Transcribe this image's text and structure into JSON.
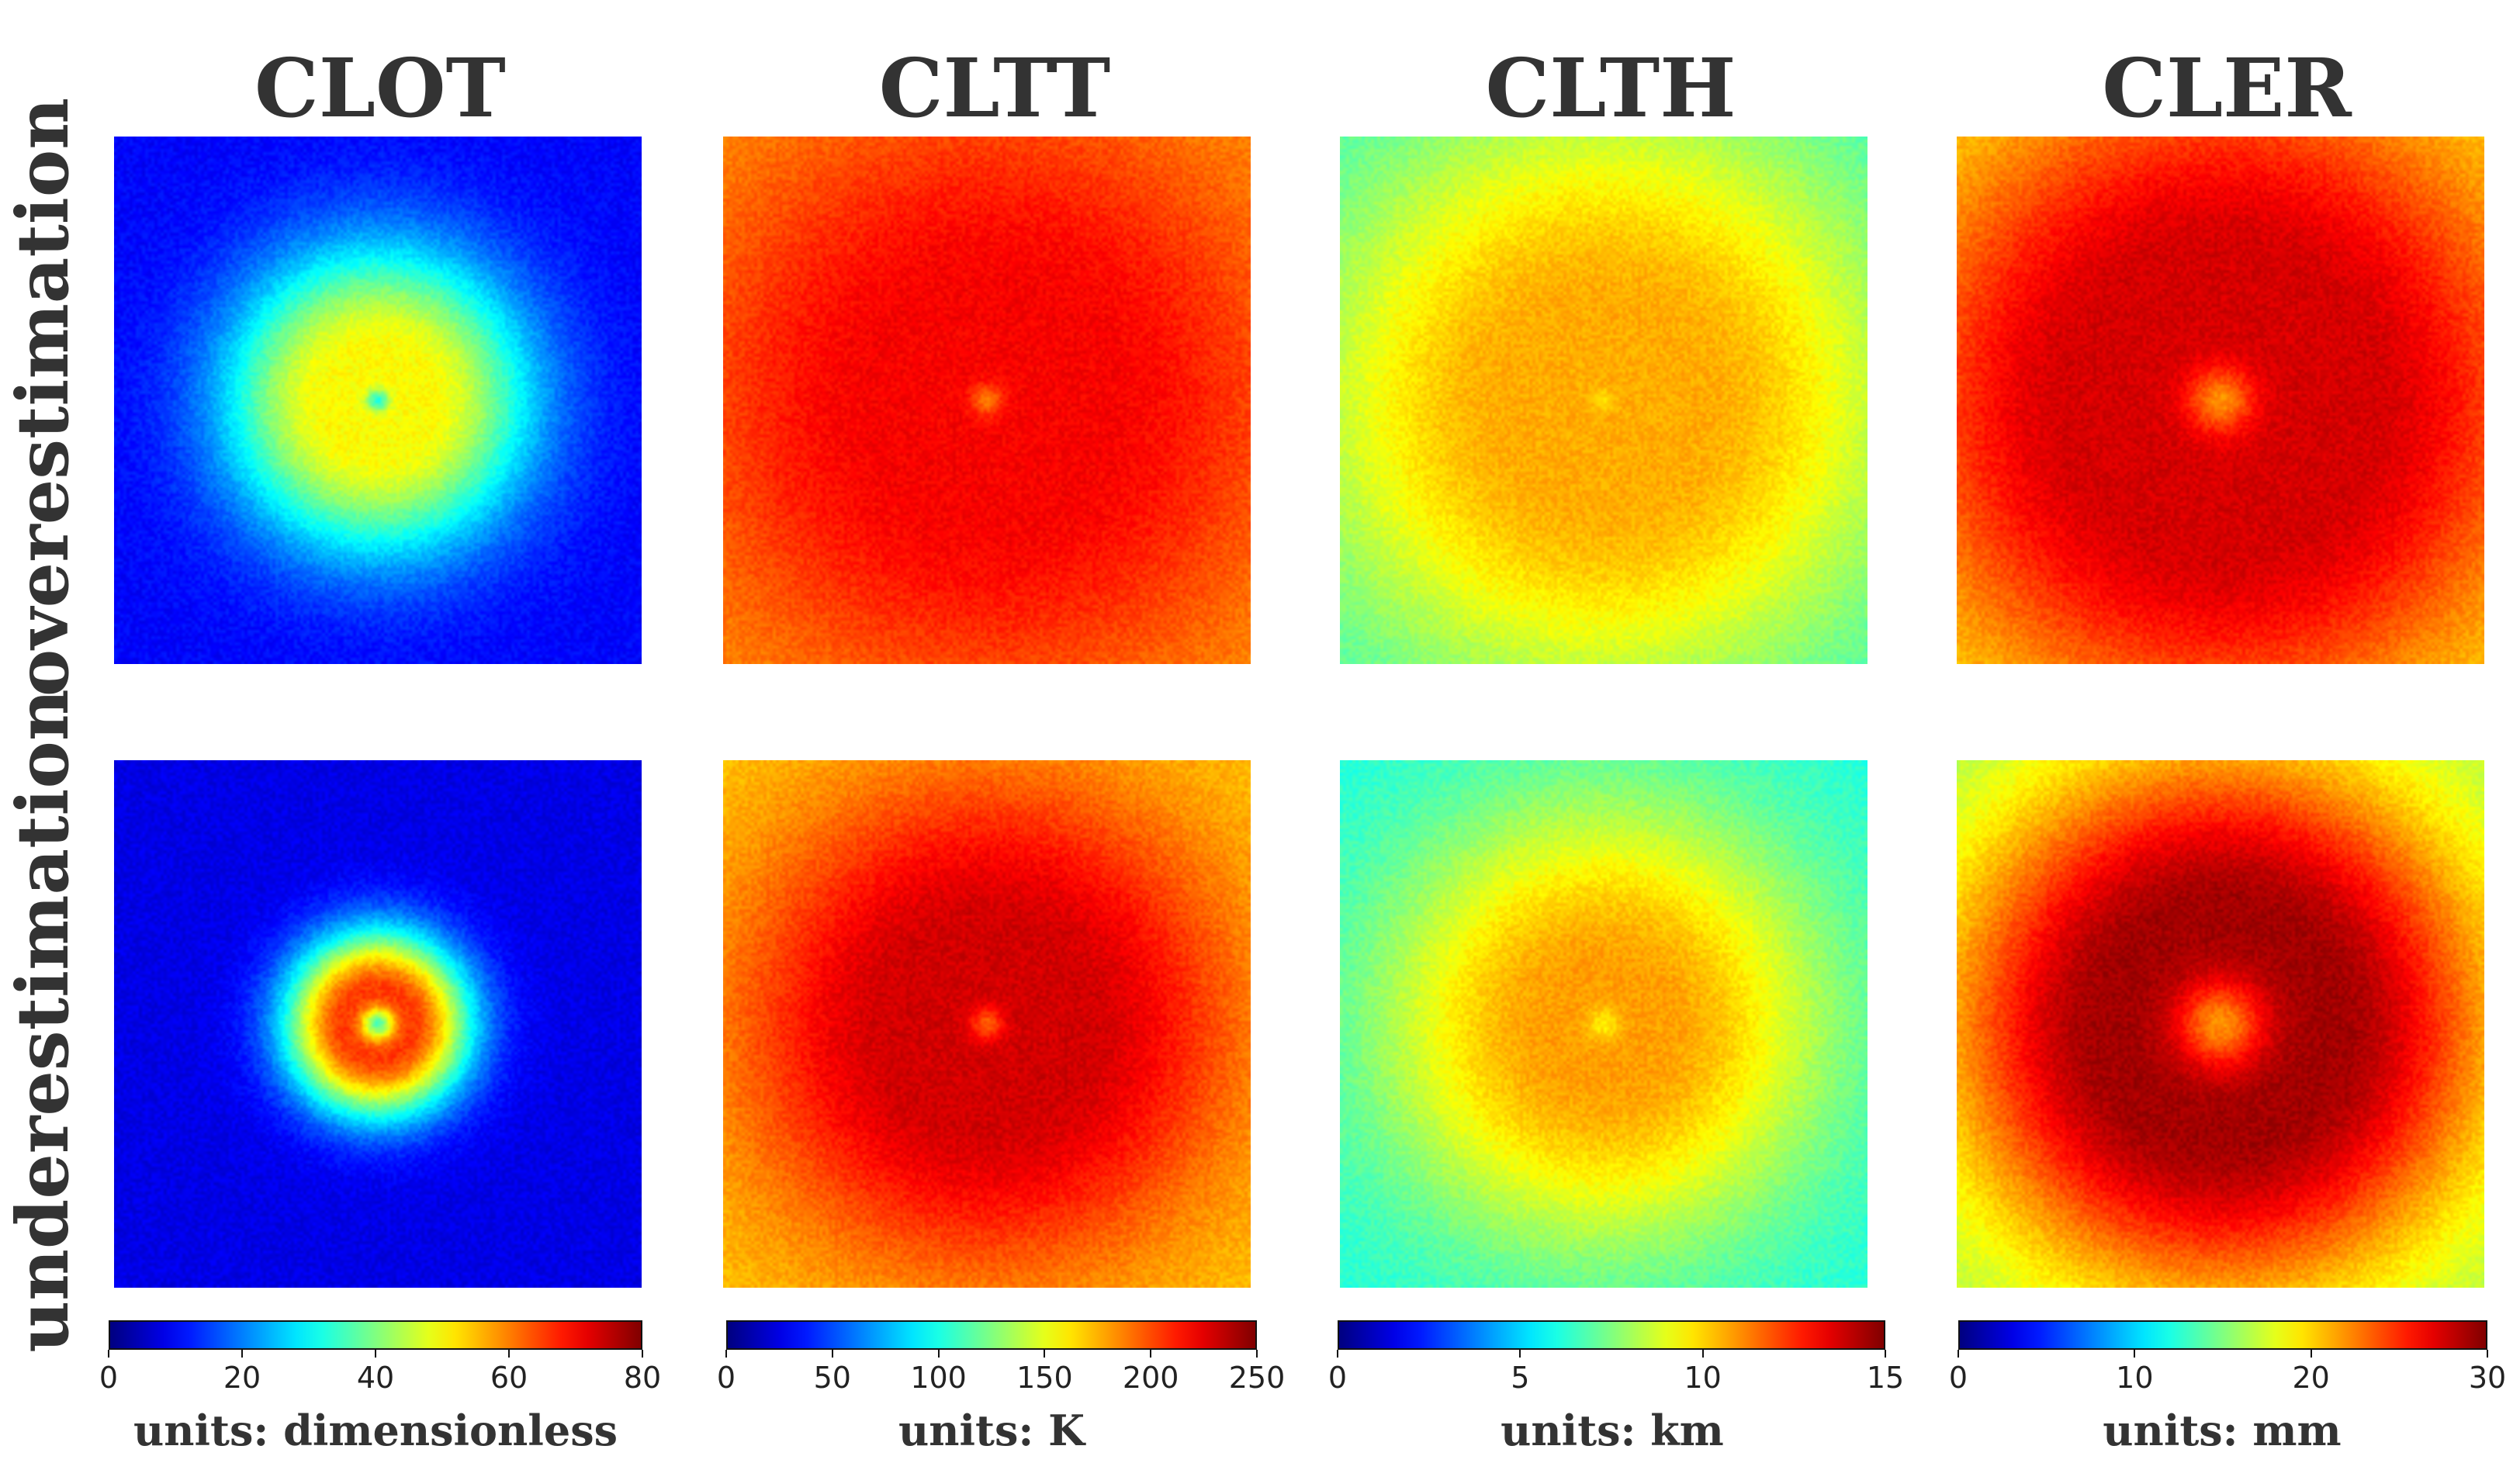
{
  "chart_data": {
    "type": "heatmap",
    "colormap": "jet",
    "columns": [
      {
        "title": "CLOT",
        "units": "units: dimensionless",
        "vmin": 0,
        "vmax": 80,
        "ticks": [
          "0",
          "20",
          "40",
          "60",
          "80"
        ],
        "tick_values": [
          0,
          20,
          40,
          60,
          80
        ],
        "rows": {
          "overestimation": {
            "center_value": 48,
            "peak_value": 50,
            "peak_radius": 0.1,
            "edge_value": 10,
            "ring_width": 0.3,
            "hole_value": 32,
            "hole_radius": 0.02
          },
          "underestimation": {
            "center_value": 60,
            "peak_value": 66,
            "peak_radius": 0.06,
            "edge_value": 8,
            "ring_width": 0.18,
            "hole_value": 36,
            "hole_radius": 0.03
          }
        }
      },
      {
        "title": "CLTT",
        "units": "units: K",
        "vmin": 0,
        "vmax": 250,
        "ticks": [
          "0",
          "50",
          "100",
          "150",
          "200",
          "250"
        ],
        "tick_values": [
          0,
          50,
          100,
          150,
          200,
          250
        ],
        "rows": {
          "overestimation": {
            "center_value": 222,
            "peak_value": 220,
            "peak_radius": 0.22,
            "edge_value": 180,
            "ring_width": 0.55,
            "hole_value": 190,
            "hole_radius": 0.03
          },
          "underestimation": {
            "center_value": 228,
            "peak_value": 230,
            "peak_radius": 0.18,
            "edge_value": 170,
            "ring_width": 0.45,
            "hole_value": 195,
            "hole_radius": 0.03
          }
        }
      },
      {
        "title": "CLTH",
        "units": "units: km",
        "vmin": 0,
        "vmax": 15,
        "ticks": [
          "0",
          "5",
          "10",
          "15"
        ],
        "tick_values": [
          0,
          5,
          10,
          15
        ],
        "rows": {
          "overestimation": {
            "center_value": 10.8,
            "peak_value": 10.6,
            "peak_radius": 0.18,
            "edge_value": 6.2,
            "ring_width": 0.6,
            "hole_value": 9.8,
            "hole_radius": 0.02
          },
          "underestimation": {
            "center_value": 10.8,
            "peak_value": 10.8,
            "peak_radius": 0.1,
            "edge_value": 6.0,
            "ring_width": 0.5,
            "hole_value": 9.6,
            "hole_radius": 0.03
          }
        }
      },
      {
        "title": "CLER",
        "units": "units: mm",
        "vmin": 0,
        "vmax": 30,
        "ticks": [
          "0",
          "10",
          "20",
          "30"
        ],
        "tick_values": [
          0,
          10,
          20,
          30
        ],
        "rows": {
          "overestimation": {
            "center_value": 27.5,
            "peak_value": 27.5,
            "peak_radius": 0.28,
            "edge_value": 19,
            "ring_width": 0.5,
            "hole_value": 22,
            "hole_radius": 0.06
          },
          "underestimation": {
            "center_value": 29,
            "peak_value": 29,
            "peak_radius": 0.22,
            "edge_value": 16,
            "ring_width": 0.45,
            "hole_value": 22,
            "hole_radius": 0.08
          }
        }
      }
    ],
    "row_labels": [
      "overestimation",
      "underestimation"
    ]
  }
}
